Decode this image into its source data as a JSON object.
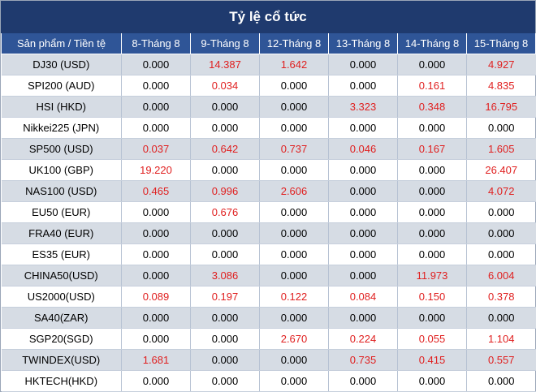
{
  "title": "Tỷ lệ cổ tức",
  "columns": [
    "Sản phẩm / Tiền tệ",
    "8-Tháng 8",
    "9-Tháng 8",
    "12-Tháng 8",
    "13-Tháng 8",
    "14-Tháng 8",
    "15-Tháng 8"
  ],
  "rows": [
    {
      "symbol": "DJ30 (USD)",
      "values": [
        "0.000",
        "14.387",
        "1.642",
        "0.000",
        "0.000",
        "4.927"
      ]
    },
    {
      "symbol": "SPI200 (AUD)",
      "values": [
        "0.000",
        "0.034",
        "0.000",
        "0.000",
        "0.161",
        "4.835"
      ]
    },
    {
      "symbol": "HSI (HKD)",
      "values": [
        "0.000",
        "0.000",
        "0.000",
        "3.323",
        "0.348",
        "16.795"
      ]
    },
    {
      "symbol": "Nikkei225 (JPN)",
      "values": [
        "0.000",
        "0.000",
        "0.000",
        "0.000",
        "0.000",
        "0.000"
      ]
    },
    {
      "symbol": "SP500 (USD)",
      "values": [
        "0.037",
        "0.642",
        "0.737",
        "0.046",
        "0.167",
        "1.605"
      ]
    },
    {
      "symbol": "UK100 (GBP)",
      "values": [
        "19.220",
        "0.000",
        "0.000",
        "0.000",
        "0.000",
        "26.407"
      ]
    },
    {
      "symbol": "NAS100 (USD)",
      "values": [
        "0.465",
        "0.996",
        "2.606",
        "0.000",
        "0.000",
        "4.072"
      ]
    },
    {
      "symbol": "EU50 (EUR)",
      "values": [
        "0.000",
        "0.676",
        "0.000",
        "0.000",
        "0.000",
        "0.000"
      ]
    },
    {
      "symbol": "FRA40 (EUR)",
      "values": [
        "0.000",
        "0.000",
        "0.000",
        "0.000",
        "0.000",
        "0.000"
      ]
    },
    {
      "symbol": "ES35 (EUR)",
      "values": [
        "0.000",
        "0.000",
        "0.000",
        "0.000",
        "0.000",
        "0.000"
      ]
    },
    {
      "symbol": "CHINA50(USD)",
      "values": [
        "0.000",
        "3.086",
        "0.000",
        "0.000",
        "11.973",
        "6.004"
      ]
    },
    {
      "symbol": "US2000(USD)",
      "values": [
        "0.089",
        "0.197",
        "0.122",
        "0.084",
        "0.150",
        "0.378"
      ]
    },
    {
      "symbol": "SA40(ZAR)",
      "values": [
        "0.000",
        "0.000",
        "0.000",
        "0.000",
        "0.000",
        "0.000"
      ]
    },
    {
      "symbol": "SGP20(SGD)",
      "values": [
        "0.000",
        "0.000",
        "2.670",
        "0.224",
        "0.055",
        "1.104"
      ]
    },
    {
      "symbol": "TWINDEX(USD)",
      "values": [
        "1.681",
        "0.000",
        "0.000",
        "0.735",
        "0.415",
        "0.557"
      ]
    },
    {
      "symbol": "HKTECH(HKD)",
      "values": [
        "0.000",
        "0.000",
        "0.000",
        "0.000",
        "0.000",
        "0.000"
      ]
    }
  ],
  "colors": {
    "title_bg": "#1f3a6e",
    "header_bg": "#2f5597",
    "stripe_bg": "#d6dce4",
    "positive_value": "#e02020",
    "zero_value": "#000000"
  }
}
